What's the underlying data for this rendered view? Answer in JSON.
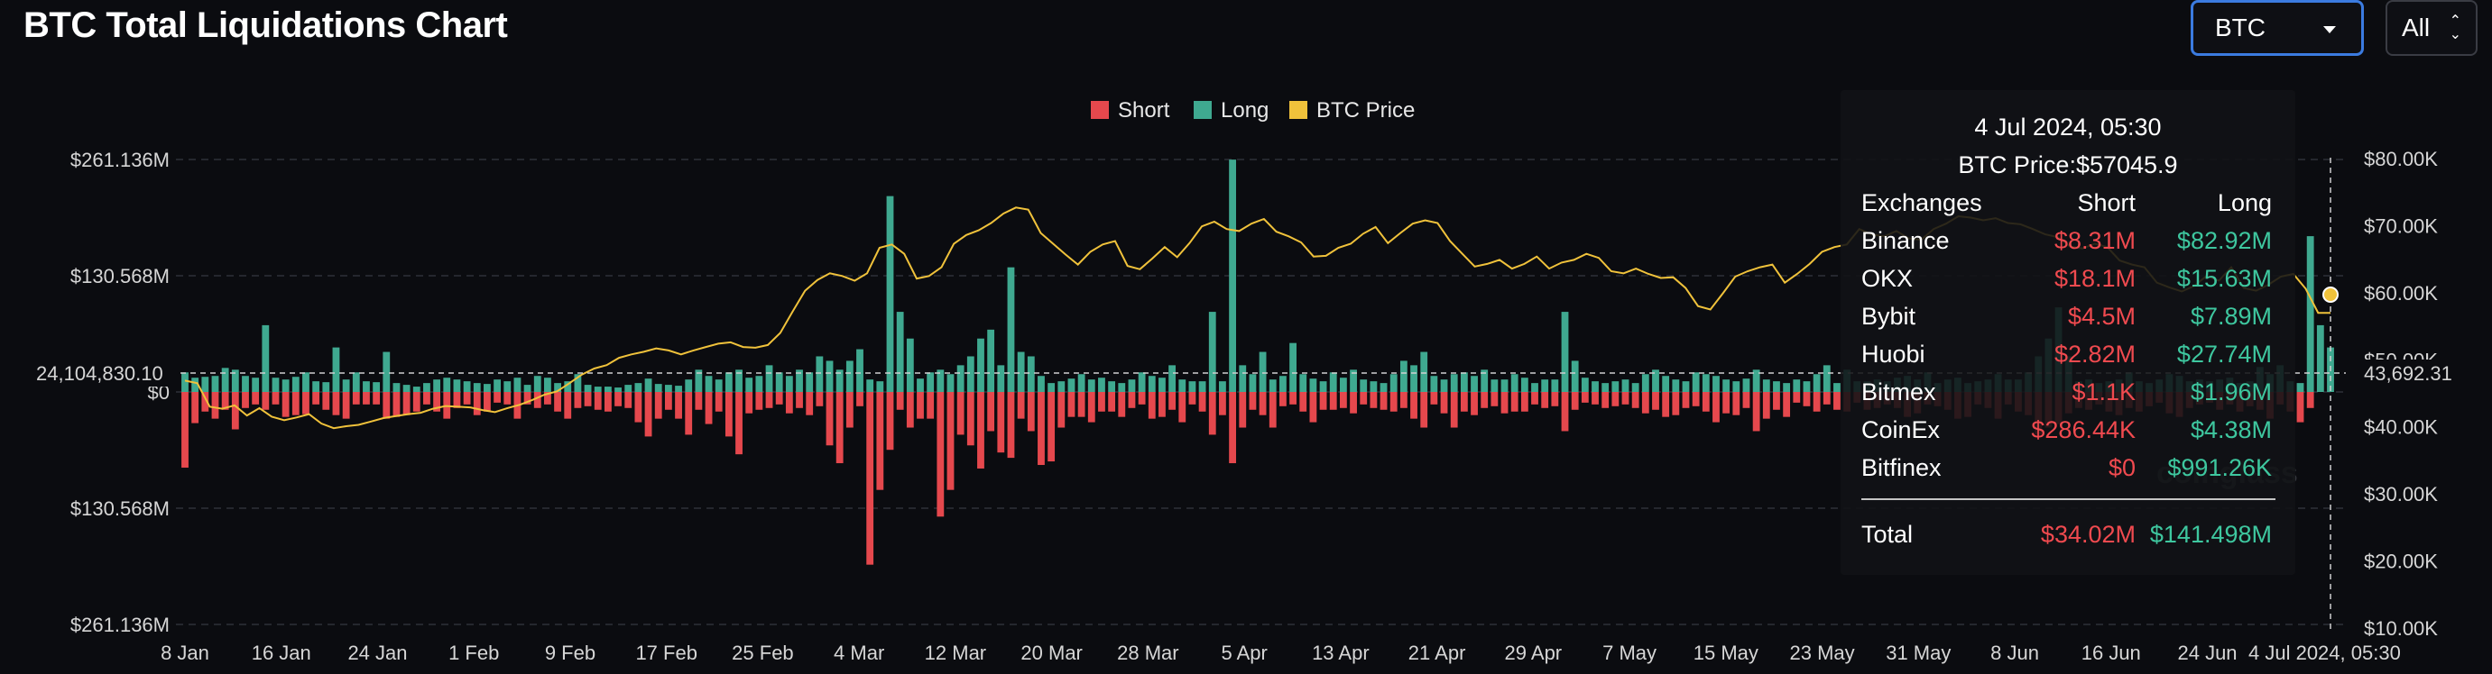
{
  "header": {
    "title": "BTC Total Liquidations Chart",
    "coin_select": "BTC",
    "range_select": "All",
    "range_icon": "up-down-chevron-icon",
    "coin_icon": "caret-down-icon"
  },
  "colors": {
    "short": "#e5484d",
    "long": "#3fa990",
    "price": "#f0c23b",
    "background": "#0b0c10",
    "grid": "#2e3038"
  },
  "crosshair": {
    "left_label": "24,104,830.10",
    "right_label": "43,692.31",
    "x_label": "4 Jul 2024, 05:30"
  },
  "watermark": "coinglass",
  "tooltip": {
    "date": "4 Jul 2024, 05:30",
    "price_line": "BTC Price:$57045.9",
    "header": {
      "exchange": "Exchanges",
      "short": "Short",
      "long": "Long"
    },
    "rows": [
      {
        "exchange": "Binance",
        "short": "$8.31M",
        "long": "$82.92M"
      },
      {
        "exchange": "OKX",
        "short": "$18.1M",
        "long": "$15.63M"
      },
      {
        "exchange": "Bybit",
        "short": "$4.5M",
        "long": "$7.89M"
      },
      {
        "exchange": "Huobi",
        "short": "$2.82M",
        "long": "$27.74M"
      },
      {
        "exchange": "Bitmex",
        "short": "$1.1K",
        "long": "$1.96M"
      },
      {
        "exchange": "CoinEx",
        "short": "$286.44K",
        "long": "$4.38M"
      },
      {
        "exchange": "Bitfinex",
        "short": "$0",
        "long": "$991.26K"
      }
    ],
    "total": {
      "label": "Total",
      "short": "$34.02M",
      "long": "$141.498M"
    }
  },
  "chart_data": {
    "type": "bar",
    "title": "BTC Total Liquidations Chart",
    "legend": [
      "Short",
      "Long",
      "BTC Price"
    ],
    "legend_placement": "top-center",
    "grid": true,
    "x_ticks": [
      "8 Jan",
      "16 Jan",
      "24 Jan",
      "1 Feb",
      "9 Feb",
      "17 Feb",
      "25 Feb",
      "4 Mar",
      "12 Mar",
      "20 Mar",
      "28 Mar",
      "5 Apr",
      "13 Apr",
      "21 Apr",
      "29 Apr",
      "7 May",
      "15 May",
      "23 May",
      "31 May",
      "8 Jun",
      "16 Jun",
      "24 Jun"
    ],
    "left_axis": {
      "ticks": [
        "$261.136M",
        "$130.568M",
        "$0",
        "$130.568M",
        "$261.136M"
      ],
      "ylim": [
        -261.136,
        261.136
      ],
      "unit": "M USD"
    },
    "right_axis": {
      "ticks": [
        "$80.00K",
        "$70.00K",
        "$60.00K",
        "$50.00K",
        "$40.00K",
        "$30.00K",
        "$20.00K",
        "$10.00K"
      ],
      "ylim": [
        0,
        80000
      ],
      "unit": "USD"
    },
    "start_date": "2024-01-08",
    "series": [
      {
        "name": "Long",
        "values": [
          22,
          16,
          17,
          18,
          27,
          25,
          18,
          16,
          75,
          16,
          14,
          17,
          22,
          12,
          11,
          50,
          14,
          22,
          12,
          11,
          45,
          10,
          8,
          6,
          10,
          14,
          16,
          14,
          12,
          10,
          9,
          14,
          12,
          16,
          8,
          18,
          16,
          10,
          12,
          20,
          8,
          6,
          6,
          5,
          8,
          10,
          15,
          9,
          8,
          7,
          14,
          25,
          18,
          14,
          22,
          25,
          16,
          18,
          30,
          22,
          18,
          25,
          22,
          40,
          35,
          25,
          35,
          48,
          14,
          12,
          220,
          90,
          60,
          15,
          22,
          25,
          20,
          30,
          40,
          60,
          70,
          30,
          140,
          45,
          40,
          18,
          10,
          12,
          15,
          20,
          14,
          16,
          12,
          10,
          14,
          22,
          18,
          16,
          30,
          14,
          12,
          12,
          90,
          12,
          261,
          30,
          20,
          45,
          14,
          18,
          55,
          20,
          15,
          12,
          22,
          16,
          25,
          14,
          12,
          10,
          20,
          35,
          30,
          45,
          18,
          14,
          20,
          22,
          18,
          25,
          14,
          14,
          20,
          16,
          10,
          14,
          14,
          90,
          35,
          16,
          12,
          10,
          12,
          14,
          10,
          20,
          25,
          18,
          14,
          12,
          22,
          20,
          18,
          14,
          12,
          15,
          25,
          14,
          12,
          10,
          14,
          12,
          20,
          30,
          10,
          25,
          12,
          12,
          14,
          12,
          16,
          18,
          14,
          22,
          10,
          14,
          16,
          10,
          12,
          14,
          20,
          14,
          14,
          22,
          40,
          60,
          95,
          40,
          12,
          14,
          10,
          12,
          14,
          22,
          12,
          10,
          14,
          20,
          18,
          12,
          14,
          12,
          14,
          16,
          10,
          12,
          28,
          20,
          30,
          12,
          10,
          175,
          75,
          50
        ]
      },
      {
        "name": "Short",
        "values": [
          85,
          35,
          22,
          30,
          20,
          42,
          18,
          14,
          20,
          14,
          28,
          26,
          25,
          14,
          20,
          26,
          30,
          14,
          14,
          14,
          30,
          28,
          26,
          22,
          14,
          22,
          30,
          18,
          14,
          26,
          22,
          12,
          14,
          30,
          14,
          18,
          14,
          22,
          30,
          18,
          16,
          20,
          22,
          16,
          18,
          34,
          50,
          30,
          20,
          30,
          48,
          20,
          36,
          22,
          50,
          70,
          24,
          20,
          18,
          14,
          24,
          18,
          26,
          16,
          60,
          80,
          40,
          16,
          194,
          110,
          65,
          20,
          40,
          30,
          30,
          140,
          110,
          48,
          60,
          86,
          44,
          68,
          74,
          30,
          44,
          82,
          78,
          40,
          28,
          28,
          34,
          22,
          22,
          28,
          18,
          14,
          30,
          28,
          20,
          34,
          14,
          22,
          48,
          26,
          80,
          40,
          20,
          26,
          40,
          16,
          14,
          22,
          34,
          20,
          20,
          18,
          24,
          14,
          18,
          20,
          22,
          18,
          30,
          40,
          14,
          24,
          40,
          22,
          26,
          18,
          16,
          24,
          22,
          22,
          14,
          18,
          16,
          44,
          20,
          12,
          14,
          18,
          16,
          14,
          18,
          24,
          20,
          28,
          26,
          18,
          16,
          22,
          34,
          24,
          26,
          18,
          44,
          30,
          20,
          28,
          12,
          16,
          22,
          14,
          20,
          22,
          12,
          20,
          18,
          14,
          18,
          28,
          24,
          14,
          16,
          20,
          30,
          28,
          14,
          18,
          30,
          14,
          22,
          26,
          48,
          40,
          36,
          24,
          18,
          20,
          14,
          22,
          26,
          18,
          22,
          16,
          12,
          24,
          28,
          18,
          14,
          12,
          20,
          14,
          22,
          16,
          20,
          30,
          14,
          22,
          34,
          18
        ]
      },
      {
        "name": "BTC Price",
        "values": [
          46900,
          46500,
          43000,
          42700,
          43200,
          41700,
          42800,
          41500,
          41000,
          41400,
          41900,
          40500,
          39800,
          40100,
          40300,
          40800,
          41300,
          41600,
          41900,
          42100,
          42700,
          43100,
          43000,
          42900,
          42500,
          42200,
          42800,
          43300,
          44000,
          44800,
          45300,
          46500,
          47800,
          48700,
          49200,
          50300,
          50800,
          51200,
          51700,
          51400,
          50800,
          51400,
          51900,
          52400,
          52600,
          51900,
          51800,
          52200,
          54000,
          57200,
          60300,
          61900,
          62900,
          62500,
          61800,
          62900,
          66700,
          67200,
          65800,
          62100,
          62500,
          63800,
          67300,
          68600,
          69300,
          70400,
          71800,
          72700,
          72400,
          68900,
          67300,
          65700,
          64200,
          66100,
          67200,
          67700,
          64000,
          63500,
          65100,
          66800,
          65300,
          67400,
          69900,
          70600,
          69500,
          69200,
          70300,
          71000,
          69100,
          68400,
          67500,
          65400,
          65500,
          66700,
          67300,
          68800,
          69800,
          67400,
          68900,
          70300,
          70800,
          70400,
          67700,
          65800,
          63900,
          64300,
          64900,
          63600,
          64300,
          65400,
          63600,
          64500,
          64900,
          65800,
          65200,
          63200,
          62900,
          63600,
          62800,
          62200,
          62300,
          60700,
          58000,
          57500,
          59900,
          62400,
          63200,
          63800,
          64200,
          61500,
          62800,
          64300,
          66100,
          66800,
          67200,
          69500,
          68700,
          68400,
          69200,
          68100,
          67900,
          69500,
          70300,
          71400,
          71200,
          70800,
          71100,
          70400,
          70200,
          69500,
          68700,
          68300,
          66900,
          66600,
          67300,
          66800,
          64800,
          64200,
          63800,
          61500,
          60800,
          60200,
          61000,
          62500,
          61800,
          63800,
          60700,
          60300,
          61200,
          62400,
          62800,
          60600,
          57000,
          57000
        ]
      }
    ],
    "crosshair_value": {
      "liquidation_usd": 24104830.1,
      "price_usd": 43692.31
    }
  }
}
